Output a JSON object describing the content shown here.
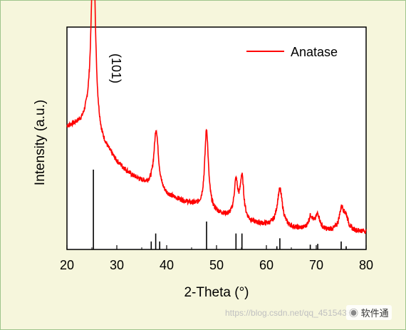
{
  "chart_data": {
    "type": "line",
    "xlabel": "2-Theta (°)",
    "ylabel": "Intensity (a.u.)",
    "xlim": [
      20,
      80
    ],
    "x_ticks": [
      "20",
      "30",
      "40",
      "50",
      "60",
      "70",
      "80"
    ],
    "y_ticks_labeled": false,
    "legend": {
      "position": "top-right",
      "entries": [
        "Anatase"
      ]
    },
    "annotations": [
      {
        "text": "(101)",
        "x": 25.3,
        "orientation": "vertical"
      }
    ],
    "series": [
      {
        "name": "Anatase",
        "color": "#ff0000",
        "baseline": [
          [
            20,
            0.55
          ],
          [
            23,
            0.57
          ],
          [
            24.8,
            0.62
          ],
          [
            27,
            0.48
          ],
          [
            30,
            0.39
          ],
          [
            33,
            0.33
          ],
          [
            36,
            0.29
          ],
          [
            40,
            0.24
          ],
          [
            44,
            0.21
          ],
          [
            50,
            0.16
          ],
          [
            56,
            0.12
          ],
          [
            62,
            0.1
          ],
          [
            70,
            0.08
          ],
          [
            76,
            0.08
          ],
          [
            80,
            0.08
          ]
        ],
        "peaks": [
          {
            "x": 25.3,
            "height": 0.84,
            "width": 0.45
          },
          {
            "x": 37.9,
            "height": 0.27,
            "width": 0.55
          },
          {
            "x": 48.0,
            "height": 0.36,
            "width": 0.45
          },
          {
            "x": 53.9,
            "height": 0.16,
            "width": 0.45
          },
          {
            "x": 55.1,
            "height": 0.19,
            "width": 0.45
          },
          {
            "x": 62.7,
            "height": 0.17,
            "width": 0.65
          },
          {
            "x": 68.9,
            "height": 0.06,
            "width": 0.55
          },
          {
            "x": 70.3,
            "height": 0.07,
            "width": 0.55
          },
          {
            "x": 75.1,
            "height": 0.1,
            "width": 0.6
          },
          {
            "x": 76.0,
            "height": 0.05,
            "width": 0.5
          }
        ]
      }
    ],
    "reference_lines": {
      "color": "#000000",
      "positions": [
        25.3,
        36.9,
        37.8,
        38.6,
        48.0,
        53.9,
        55.1,
        62.1,
        62.7,
        68.8,
        70.3,
        75.0,
        76.0
      ],
      "heights": [
        1.0,
        0.1,
        0.2,
        0.1,
        0.35,
        0.2,
        0.2,
        0.04,
        0.14,
        0.06,
        0.07,
        0.1,
        0.04
      ]
    }
  },
  "watermark": {
    "url_text": "https://blog.csdn.net/qq_45154380",
    "brand_text": "软件通"
  }
}
